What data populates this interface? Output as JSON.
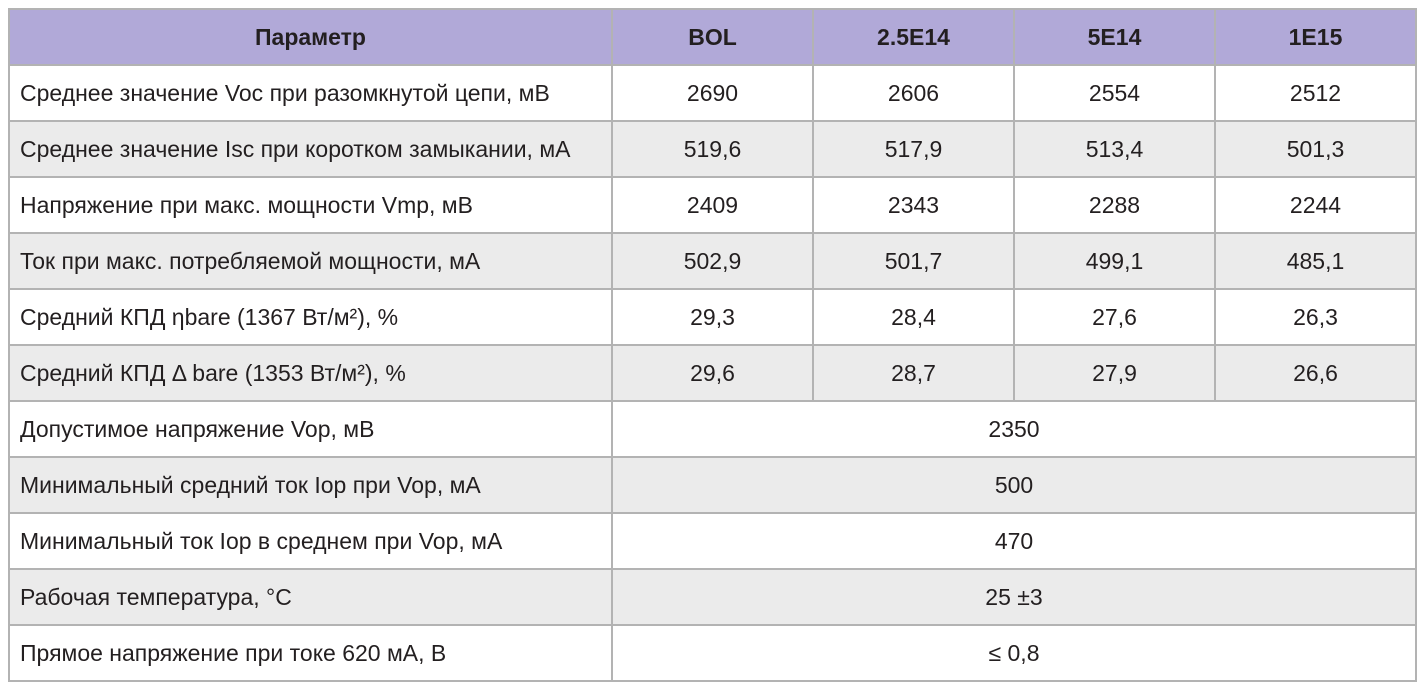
{
  "table": {
    "headers": [
      "Параметр",
      "BOL",
      "2.5E14",
      "5E14",
      "1E15"
    ],
    "rows": [
      {
        "param": "Среднее значение Voc при разомкнутой цепи, мВ",
        "values": [
          "2690",
          "2606",
          "2554",
          "2512"
        ]
      },
      {
        "param": "Среднее значение Isc при коротком замыкании, мА",
        "values": [
          "519,6",
          "517,9",
          "513,4",
          "501,3"
        ]
      },
      {
        "param": "Напряжение при макс. мощности Vmp, мВ",
        "values": [
          "2409",
          "2343",
          "2288",
          "2244"
        ]
      },
      {
        "param": "Ток при макс. потребляемой мощности, мА",
        "values": [
          "502,9",
          "501,7",
          "499,1",
          "485,1"
        ]
      },
      {
        "param": "Средний КПД ηbare (1367 Вт/м²), %",
        "values": [
          "29,3",
          "28,4",
          "27,6",
          "26,3"
        ]
      },
      {
        "param": "Средний КПД Δ bare (1353 Вт/м²), %",
        "values": [
          "29,6",
          "28,7",
          "27,9",
          "26,6"
        ]
      }
    ],
    "merged_rows": [
      {
        "param": "Допустимое напряжение Vop, мВ",
        "value": "2350"
      },
      {
        "param": "Минимальный средний ток Iop при Vop, мА",
        "value": "500"
      },
      {
        "param": "Минимальный ток Iop в среднем при Vop, мА",
        "value": "470"
      },
      {
        "param": "Рабочая температура, °C",
        "value": "25 ±3"
      },
      {
        "param": "Прямое напряжение при токе 620 мА, В",
        "value": "≤ 0,8"
      }
    ]
  }
}
